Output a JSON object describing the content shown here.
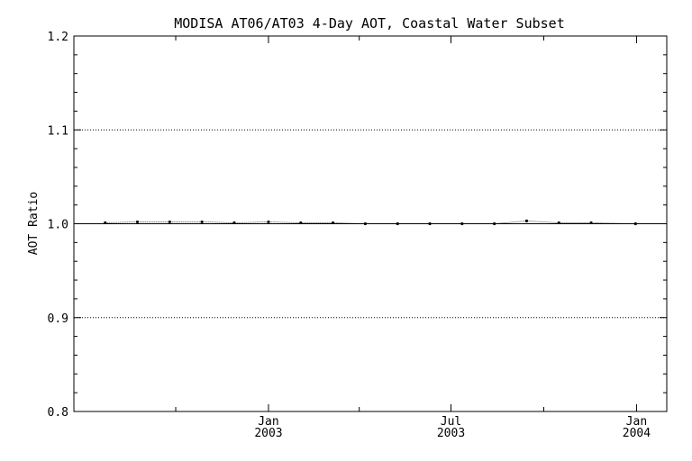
{
  "chart_data": {
    "type": "line",
    "title": "MODISA AT06/AT03 4-Day AOT, Coastal Water Subset",
    "ylabel": "AOT Ratio",
    "xlabel": "",
    "ylim": [
      0.8,
      1.2
    ],
    "y_ticks": [
      "0.8",
      "0.9",
      "1.0",
      "1.1",
      "1.2"
    ],
    "y_gridlines": [
      0.9,
      1.0,
      1.1
    ],
    "reference_line": 1.0,
    "x_range": [
      "2002-06-22",
      "2004-01-31"
    ],
    "x_major_ticks": [
      {
        "date": "2003-01-01",
        "month": "Jan",
        "year": "2003"
      },
      {
        "date": "2003-07-01",
        "month": "Jul",
        "year": "2003"
      },
      {
        "date": "2004-01-01",
        "month": "Jan",
        "year": "2004"
      }
    ],
    "x_minor_ticks": [
      "2002-10-01",
      "2003-04-01",
      "2003-10-01"
    ],
    "series": [
      {
        "markers": [
          {
            "date": "2002-07-23",
            "value": 1.001
          },
          {
            "date": "2002-08-24",
            "value": 1.002
          },
          {
            "date": "2002-09-25",
            "value": 1.002
          },
          {
            "date": "2002-10-27",
            "value": 1.002
          },
          {
            "date": "2002-11-28",
            "value": 1.001
          },
          {
            "date": "2003-01-01",
            "value": 1.002
          },
          {
            "date": "2003-02-02",
            "value": 1.001
          },
          {
            "date": "2003-03-06",
            "value": 1.001
          },
          {
            "date": "2003-04-07",
            "value": 1.0
          },
          {
            "date": "2003-05-09",
            "value": 1.0
          },
          {
            "date": "2003-06-10",
            "value": 1.0
          },
          {
            "date": "2003-07-12",
            "value": 1.0
          },
          {
            "date": "2003-08-13",
            "value": 1.0
          },
          {
            "date": "2003-09-14",
            "value": 1.003
          },
          {
            "date": "2003-10-16",
            "value": 1.001
          },
          {
            "date": "2003-11-17",
            "value": 1.001
          },
          {
            "date": "2003-12-31",
            "value": 1.0
          }
        ]
      }
    ]
  }
}
